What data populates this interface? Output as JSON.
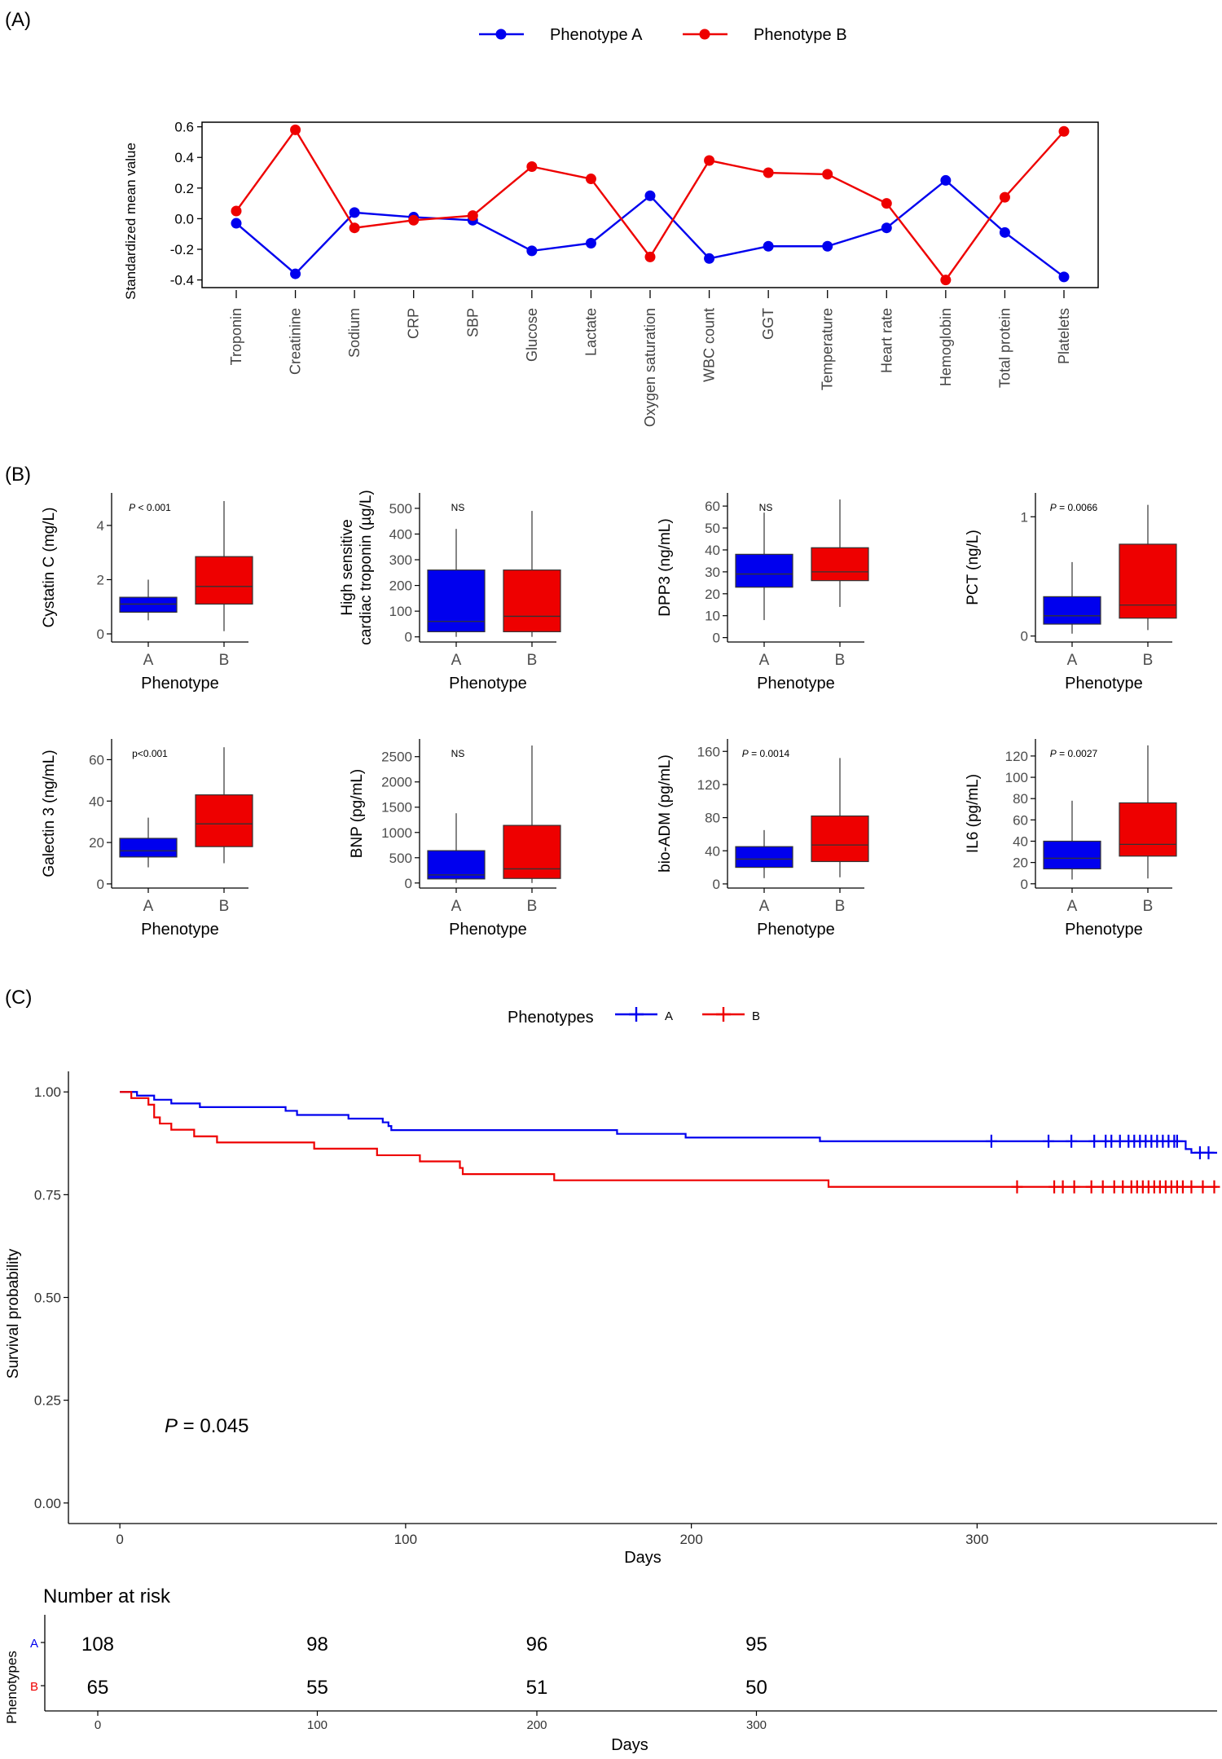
{
  "panels": {
    "a": {
      "label": "(A)"
    },
    "b": {
      "label": "(B)"
    },
    "c": {
      "label": "(C)"
    }
  },
  "colors": {
    "A": "#0000ee",
    "B": "#ee0000",
    "axis": "#000000",
    "text": "#333333"
  },
  "chart_data": [
    {
      "type": "line",
      "panel": "(A)",
      "title": "",
      "ylabel": "Standardized mean value",
      "xlabel": "",
      "categories": [
        "Troponin",
        "Creatinine",
        "Sodium",
        "CRP",
        "SBP",
        "Glucose",
        "Lactate",
        "Oxygen saturation",
        "WBC count",
        "GGT",
        "Temperature",
        "Heart rate",
        "Hemoglobin",
        "Total protein",
        "Platelets"
      ],
      "series": [
        {
          "name": "Phenotype A",
          "color": "#0000ee",
          "values": [
            -0.03,
            -0.36,
            0.04,
            0.01,
            -0.01,
            -0.21,
            -0.16,
            0.15,
            -0.26,
            -0.18,
            -0.18,
            -0.06,
            0.25,
            -0.09,
            -0.38
          ]
        },
        {
          "name": "Phenotype B",
          "color": "#ee0000",
          "values": [
            0.05,
            0.58,
            -0.06,
            -0.01,
            0.02,
            0.34,
            0.26,
            -0.25,
            0.38,
            0.3,
            0.29,
            0.1,
            -0.4,
            0.14,
            0.57
          ]
        }
      ],
      "ylim": [
        -0.45,
        0.63
      ],
      "yticks": [
        -0.4,
        -0.2,
        0.0,
        0.2,
        0.4,
        0.6
      ],
      "ytick_labels": [
        "-0.4",
        "-0.2",
        "0.0",
        "0.2",
        "0.4",
        "0.6"
      ],
      "legend": "top-center",
      "grid": false
    },
    {
      "type": "box",
      "panel": "(B)",
      "ylabel": "Cystatin C (mg/L)",
      "xlabel": "Phenotype",
      "annotation": "P < 0.001",
      "ylim": [
        -0.3,
        5.2
      ],
      "yticks": [
        0,
        2,
        4
      ],
      "ytick_labels": [
        "0",
        "2",
        "4"
      ],
      "categories": [
        "A",
        "B"
      ],
      "boxes": [
        {
          "name": "A",
          "color": "#0000ee",
          "min": 0.5,
          "q1": 0.8,
          "median": 1.1,
          "q3": 1.35,
          "max": 2.0
        },
        {
          "name": "B",
          "color": "#ee0000",
          "min": 0.1,
          "q1": 1.1,
          "median": 1.75,
          "q3": 2.85,
          "max": 4.9
        }
      ]
    },
    {
      "type": "box",
      "panel": "(B)",
      "ylabel": "High sensitive\ncardiac troponin (µg/L)",
      "xlabel": "Phenotype",
      "annotation": "NS",
      "ylim": [
        -20,
        560
      ],
      "yticks": [
        0,
        100,
        200,
        300,
        400,
        500
      ],
      "ytick_labels": [
        "0",
        "100",
        "200",
        "300",
        "400",
        "500"
      ],
      "categories": [
        "A",
        "B"
      ],
      "boxes": [
        {
          "name": "A",
          "color": "#0000ee",
          "min": 0,
          "q1": 20,
          "median": 60,
          "q3": 260,
          "max": 420
        },
        {
          "name": "B",
          "color": "#ee0000",
          "min": 0,
          "q1": 20,
          "median": 80,
          "q3": 260,
          "max": 490
        }
      ]
    },
    {
      "type": "box",
      "panel": "(B)",
      "ylabel": "DPP3 (ng/mL)",
      "xlabel": "Phenotype",
      "annotation": "NS",
      "ylim": [
        -2,
        66
      ],
      "yticks": [
        0,
        10,
        20,
        30,
        40,
        50,
        60
      ],
      "ytick_labels": [
        "0",
        "10",
        "20",
        "30",
        "40",
        "50",
        "60"
      ],
      "categories": [
        "A",
        "B"
      ],
      "boxes": [
        {
          "name": "A",
          "color": "#0000ee",
          "min": 8,
          "q1": 23,
          "median": 29,
          "q3": 38,
          "max": 57
        },
        {
          "name": "B",
          "color": "#ee0000",
          "min": 14,
          "q1": 26,
          "median": 30,
          "q3": 41,
          "max": 63
        }
      ]
    },
    {
      "type": "box",
      "panel": "(B)",
      "ylabel": "PCT (ng/L)",
      "xlabel": "Phenotype",
      "annotation": "P = 0.0066",
      "ylim": [
        -0.05,
        1.2
      ],
      "yticks": [
        0,
        1
      ],
      "ytick_labels": [
        "0",
        "1"
      ],
      "categories": [
        "A",
        "B"
      ],
      "boxes": [
        {
          "name": "A",
          "color": "#0000ee",
          "min": 0.02,
          "q1": 0.1,
          "median": 0.17,
          "q3": 0.33,
          "max": 0.62
        },
        {
          "name": "B",
          "color": "#ee0000",
          "min": 0.05,
          "q1": 0.15,
          "median": 0.26,
          "q3": 0.77,
          "max": 1.1
        }
      ]
    },
    {
      "type": "box",
      "panel": "(B)",
      "ylabel": "Galectin 3 (ng/mL)",
      "xlabel": "Phenotype",
      "annotation": "p<0.001",
      "ylim": [
        -2,
        70
      ],
      "yticks": [
        0,
        20,
        40,
        60
      ],
      "ytick_labels": [
        "0",
        "20",
        "40",
        "60"
      ],
      "categories": [
        "A",
        "B"
      ],
      "boxes": [
        {
          "name": "A",
          "color": "#0000ee",
          "min": 8,
          "q1": 13,
          "median": 16,
          "q3": 22,
          "max": 32
        },
        {
          "name": "B",
          "color": "#ee0000",
          "min": 10,
          "q1": 18,
          "median": 29,
          "q3": 43,
          "max": 66
        }
      ]
    },
    {
      "type": "box",
      "panel": "(B)",
      "ylabel": "BNP (pg/mL)",
      "xlabel": "Phenotype",
      "annotation": "NS",
      "ylim": [
        -100,
        2850
      ],
      "yticks": [
        0,
        500,
        1000,
        1500,
        2000,
        2500
      ],
      "ytick_labels": [
        "0",
        "500",
        "1000",
        "1500",
        "2000",
        "2500"
      ],
      "categories": [
        "A",
        "B"
      ],
      "boxes": [
        {
          "name": "A",
          "color": "#0000ee",
          "min": 0,
          "q1": 80,
          "median": 160,
          "q3": 640,
          "max": 1380
        },
        {
          "name": "B",
          "color": "#ee0000",
          "min": 0,
          "q1": 90,
          "median": 280,
          "q3": 1140,
          "max": 2720
        }
      ]
    },
    {
      "type": "box",
      "panel": "(B)",
      "ylabel": "bio-ADM (pg/mL)",
      "xlabel": "Phenotype",
      "annotation": "P = 0.0014",
      "ylim": [
        -5,
        175
      ],
      "yticks": [
        0,
        40,
        80,
        120,
        160
      ],
      "ytick_labels": [
        "0",
        "40",
        "80",
        "120",
        "160"
      ],
      "categories": [
        "A",
        "B"
      ],
      "boxes": [
        {
          "name": "A",
          "color": "#0000ee",
          "min": 7,
          "q1": 20,
          "median": 30,
          "q3": 45,
          "max": 65
        },
        {
          "name": "B",
          "color": "#ee0000",
          "min": 8,
          "q1": 27,
          "median": 47,
          "q3": 82,
          "max": 152
        }
      ]
    },
    {
      "type": "box",
      "panel": "(B)",
      "ylabel": "IL6 (pg/mL)",
      "xlabel": "Phenotype",
      "annotation": "P = 0.0027",
      "ylim": [
        -4,
        136
      ],
      "yticks": [
        0,
        20,
        40,
        60,
        80,
        100,
        120
      ],
      "ytick_labels": [
        "0",
        "20",
        "40",
        "60",
        "80",
        "100",
        "120"
      ],
      "categories": [
        "A",
        "B"
      ],
      "boxes": [
        {
          "name": "A",
          "color": "#0000ee",
          "min": 4,
          "q1": 14,
          "median": 24,
          "q3": 40,
          "max": 78
        },
        {
          "name": "B",
          "color": "#ee0000",
          "min": 5,
          "q1": 26,
          "median": 37,
          "q3": 76,
          "max": 130
        }
      ]
    },
    {
      "type": "line",
      "subtype": "kaplan-meier",
      "panel": "(C)",
      "title": "",
      "xlabel": "Days",
      "ylabel": "Survival probability",
      "xlim": [
        -18,
        384
      ],
      "ylim": [
        -0.05,
        1.05
      ],
      "xticks": [
        0,
        100,
        200,
        300
      ],
      "xtick_labels": [
        "0",
        "100",
        "200",
        "300"
      ],
      "yticks": [
        0,
        0.25,
        0.5,
        0.75,
        1.0
      ],
      "ytick_labels": [
        "0.00",
        "0.25",
        "0.50",
        "0.75",
        "1.00"
      ],
      "legend_title": "Phenotypes",
      "legend": "top-center",
      "annotation": {
        "italic": "P",
        "rest": " = 0.045"
      },
      "series": [
        {
          "name": "A",
          "color": "#0000ee",
          "steps": [
            [
              0,
              1.0
            ],
            [
              6,
              0.991
            ],
            [
              12,
              0.981
            ],
            [
              18,
              0.972
            ],
            [
              28,
              0.963
            ],
            [
              58,
              0.954
            ],
            [
              62,
              0.944
            ],
            [
              80,
              0.935
            ],
            [
              92,
              0.926
            ],
            [
              94,
              0.917
            ],
            [
              95,
              0.907
            ],
            [
              174,
              0.898
            ],
            [
              198,
              0.889
            ],
            [
              245,
              0.88
            ],
            [
              373,
              0.861
            ],
            [
              375,
              0.852
            ]
          ],
          "censored": [
            305,
            325,
            333,
            341,
            345,
            347,
            350,
            353,
            355,
            357,
            359,
            361,
            363,
            365,
            367,
            369,
            370,
            378,
            381
          ]
        },
        {
          "name": "B",
          "color": "#ee0000",
          "steps": [
            [
              0,
              1.0
            ],
            [
              4,
              0.985
            ],
            [
              10,
              0.969
            ],
            [
              12,
              0.938
            ],
            [
              14,
              0.923
            ],
            [
              18,
              0.908
            ],
            [
              26,
              0.892
            ],
            [
              34,
              0.877
            ],
            [
              68,
              0.862
            ],
            [
              90,
              0.846
            ],
            [
              105,
              0.831
            ],
            [
              119,
              0.815
            ],
            [
              120,
              0.8
            ],
            [
              152,
              0.785
            ],
            [
              248,
              0.769
            ]
          ],
          "censored": [
            314,
            327,
            330,
            334,
            340,
            344,
            348,
            351,
            354,
            356,
            358,
            360,
            362,
            364,
            366,
            368,
            370,
            372,
            375,
            379,
            383
          ]
        }
      ]
    },
    {
      "type": "table",
      "panel": "(C)",
      "title": "Number at risk",
      "xlabel": "Days",
      "ylabel": "Phenotypes",
      "xticks": [
        0,
        100,
        200,
        300
      ],
      "xtick_labels": [
        "0",
        "100",
        "200",
        "300"
      ],
      "rows": [
        {
          "name": "A",
          "color": "#0000ee",
          "values": [
            108,
            98,
            96,
            95
          ]
        },
        {
          "name": "B",
          "color": "#ee0000",
          "values": [
            65,
            55,
            51,
            50
          ]
        }
      ]
    }
  ]
}
